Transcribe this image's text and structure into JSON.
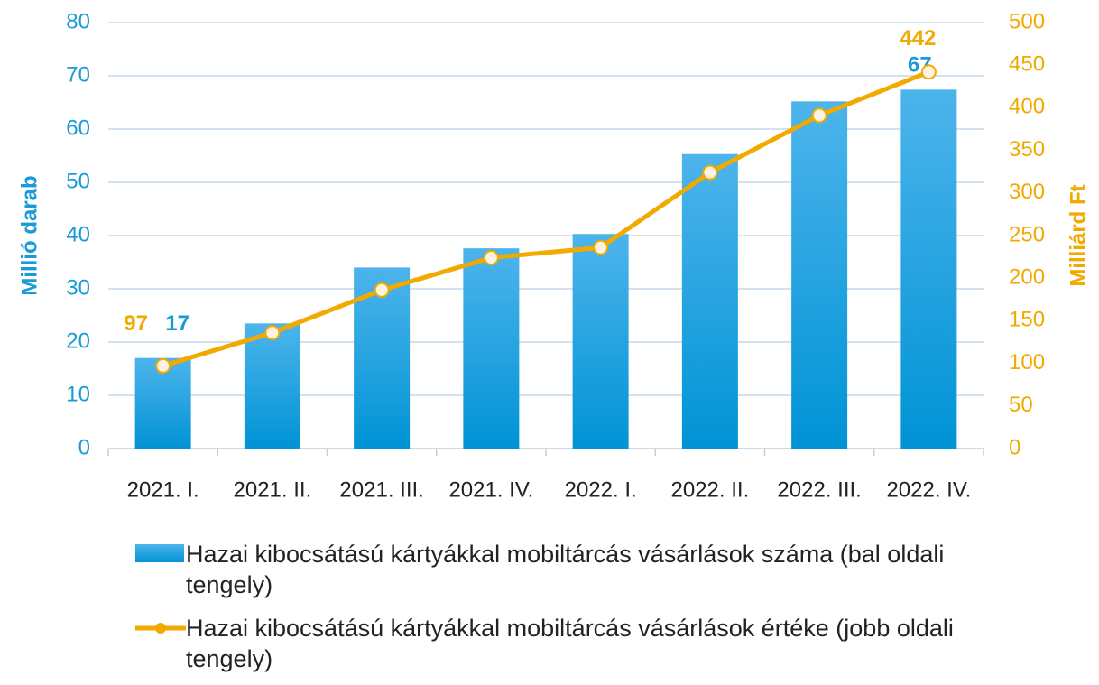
{
  "chart_data": {
    "type": "bar-line",
    "categories": [
      "2021. I.",
      "2021. II.",
      "2021. III.",
      "2021. IV.",
      "2022. I.",
      "2022. II.",
      "2022. III.",
      "2022. IV."
    ],
    "series": [
      {
        "name": "Hazai kibocsátású kártyákkal mobiltárcás vásárlások száma (bal oldali tengely)",
        "type": "bar",
        "color": "#0a9be0",
        "values": [
          17,
          23.5,
          34,
          37.6,
          40.3,
          55.3,
          65.2,
          67.4
        ],
        "value_labels": [
          "17",
          null,
          null,
          null,
          null,
          null,
          null,
          "67"
        ]
      },
      {
        "name": "Hazai kibocsátású kártyákkal mobiltárcás vásárlások értéke (jobb oldali tengely)",
        "type": "line",
        "axis": "y2",
        "color": "#f2a900",
        "values": [
          97,
          136,
          186,
          224,
          236,
          324,
          391,
          442
        ],
        "value_labels": [
          "97",
          null,
          null,
          null,
          null,
          null,
          null,
          "442"
        ]
      }
    ],
    "ylabel": "Millió darab",
    "y2label": "Milliárd Ft",
    "ylim": [
      0,
      80
    ],
    "yticks": [
      0,
      10,
      20,
      30,
      40,
      50,
      60,
      70,
      80
    ],
    "y2lim": [
      0,
      500
    ],
    "y2ticks": [
      0,
      50,
      100,
      150,
      200,
      250,
      300,
      350,
      400,
      450,
      500
    ],
    "grid": true,
    "legend": "bottom"
  }
}
